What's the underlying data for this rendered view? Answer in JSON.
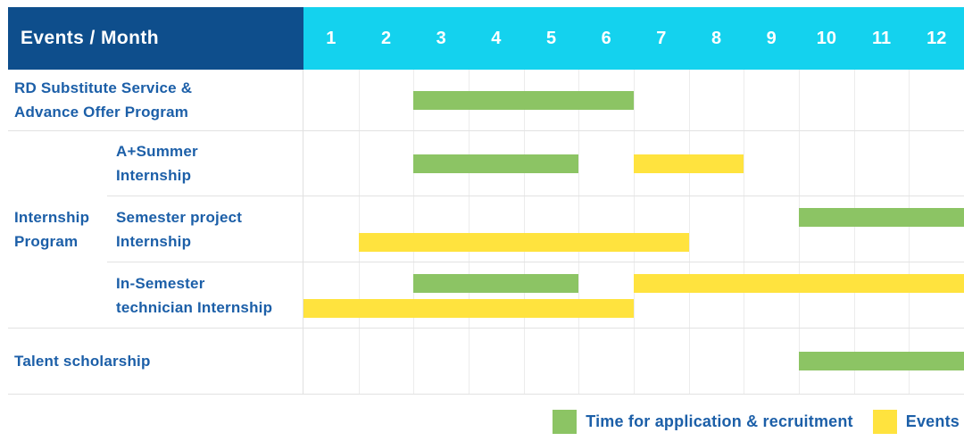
{
  "header": {
    "label": "Events / Month"
  },
  "months": [
    "1",
    "2",
    "3",
    "4",
    "5",
    "6",
    "7",
    "8",
    "9",
    "10",
    "11",
    "12"
  ],
  "colors": {
    "header_navy": "#0E4E8C",
    "header_cyan": "#14D2EE",
    "bar_green": "#8CC464",
    "bar_yellow": "#FFE33E",
    "text_blue": "#1C5FA8",
    "grid_line": "#e2e2e2",
    "month_line": "#ececec"
  },
  "chart_data": {
    "type": "bar",
    "subtype": "gantt-schedule",
    "title": "Events / Month",
    "x_axis": {
      "unit": "month",
      "ticks": [
        1,
        2,
        3,
        4,
        5,
        6,
        7,
        8,
        9,
        10,
        11,
        12
      ],
      "range": [
        1,
        12
      ]
    },
    "grid": true,
    "legend_position": "bottom-right",
    "legend": [
      {
        "key": "application",
        "label": "Time for application & recruitment",
        "color": "#8CC464"
      },
      {
        "key": "events",
        "label": "Events",
        "color": "#FFE33E"
      }
    ],
    "groups": [
      {
        "label_lines": [
          "Internship",
          "Program"
        ],
        "start_row": 1,
        "end_row": 3
      }
    ],
    "rows": [
      {
        "label_lines": [
          "RD Substitute Service &",
          "Advance Offer Program"
        ],
        "group": null,
        "bars": [
          {
            "series": "application",
            "start_month": 3,
            "end_month": 6,
            "lane": "center"
          }
        ]
      },
      {
        "label_lines": [
          "A+Summer",
          "Internship"
        ],
        "group": "Internship Program",
        "bars": [
          {
            "series": "application",
            "start_month": 3,
            "end_month": 5,
            "lane": "center"
          },
          {
            "series": "events",
            "start_month": 7,
            "end_month": 8,
            "lane": "center"
          }
        ]
      },
      {
        "label_lines": [
          "Semester project",
          "Internship"
        ],
        "group": "Internship Program",
        "bars": [
          {
            "series": "application",
            "start_month": 10,
            "end_month": 12,
            "lane": "top"
          },
          {
            "series": "events",
            "start_month": 2,
            "end_month": 7,
            "lane": "bottom"
          }
        ]
      },
      {
        "label_lines": [
          "In-Semester",
          "technician Internship"
        ],
        "group": "Internship Program",
        "bars": [
          {
            "series": "application",
            "start_month": 3,
            "end_month": 5,
            "lane": "top"
          },
          {
            "series": "events",
            "start_month": 7,
            "end_month": 12,
            "lane": "top"
          },
          {
            "series": "events",
            "start_month": 1,
            "end_month": 6,
            "lane": "bottom"
          }
        ]
      },
      {
        "label_lines": [
          "Talent scholarship"
        ],
        "group": null,
        "bars": [
          {
            "series": "application",
            "start_month": 10,
            "end_month": 12,
            "lane": "center"
          }
        ]
      }
    ]
  }
}
